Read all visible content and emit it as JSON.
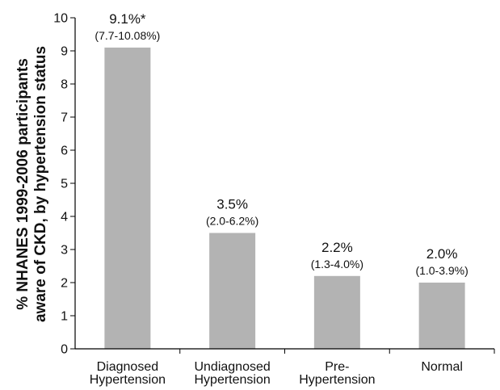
{
  "chart_data": {
    "type": "bar",
    "ylabel": "% NHANES 1999-2006 participants aware of CKD, by hypertension status",
    "ylabel_lines": [
      "% NHANES 1999-2006 participants",
      "aware of CKD, by hypertension status"
    ],
    "ylim": [
      0,
      10
    ],
    "yticks": [
      "0",
      "1",
      "2",
      "3",
      "4",
      "5",
      "6",
      "7",
      "8",
      "9",
      "10"
    ],
    "bar_color": "#b3b3b3",
    "categories": [
      [
        "Diagnosed",
        "Hypertension"
      ],
      [
        "Undiagnosed",
        "Hypertension"
      ],
      [
        "Pre-",
        "Hypertension"
      ],
      [
        "Normal"
      ]
    ],
    "values": [
      9.1,
      3.5,
      2.2,
      2.0
    ],
    "value_labels": [
      "9.1%*",
      "3.5%",
      "2.2%",
      "2.0%"
    ],
    "ci_labels": [
      "(7.7-10.08%)",
      "(2.0-6.2%)",
      "(1.3-4.0%)",
      "(1.0-3.9%)"
    ]
  }
}
